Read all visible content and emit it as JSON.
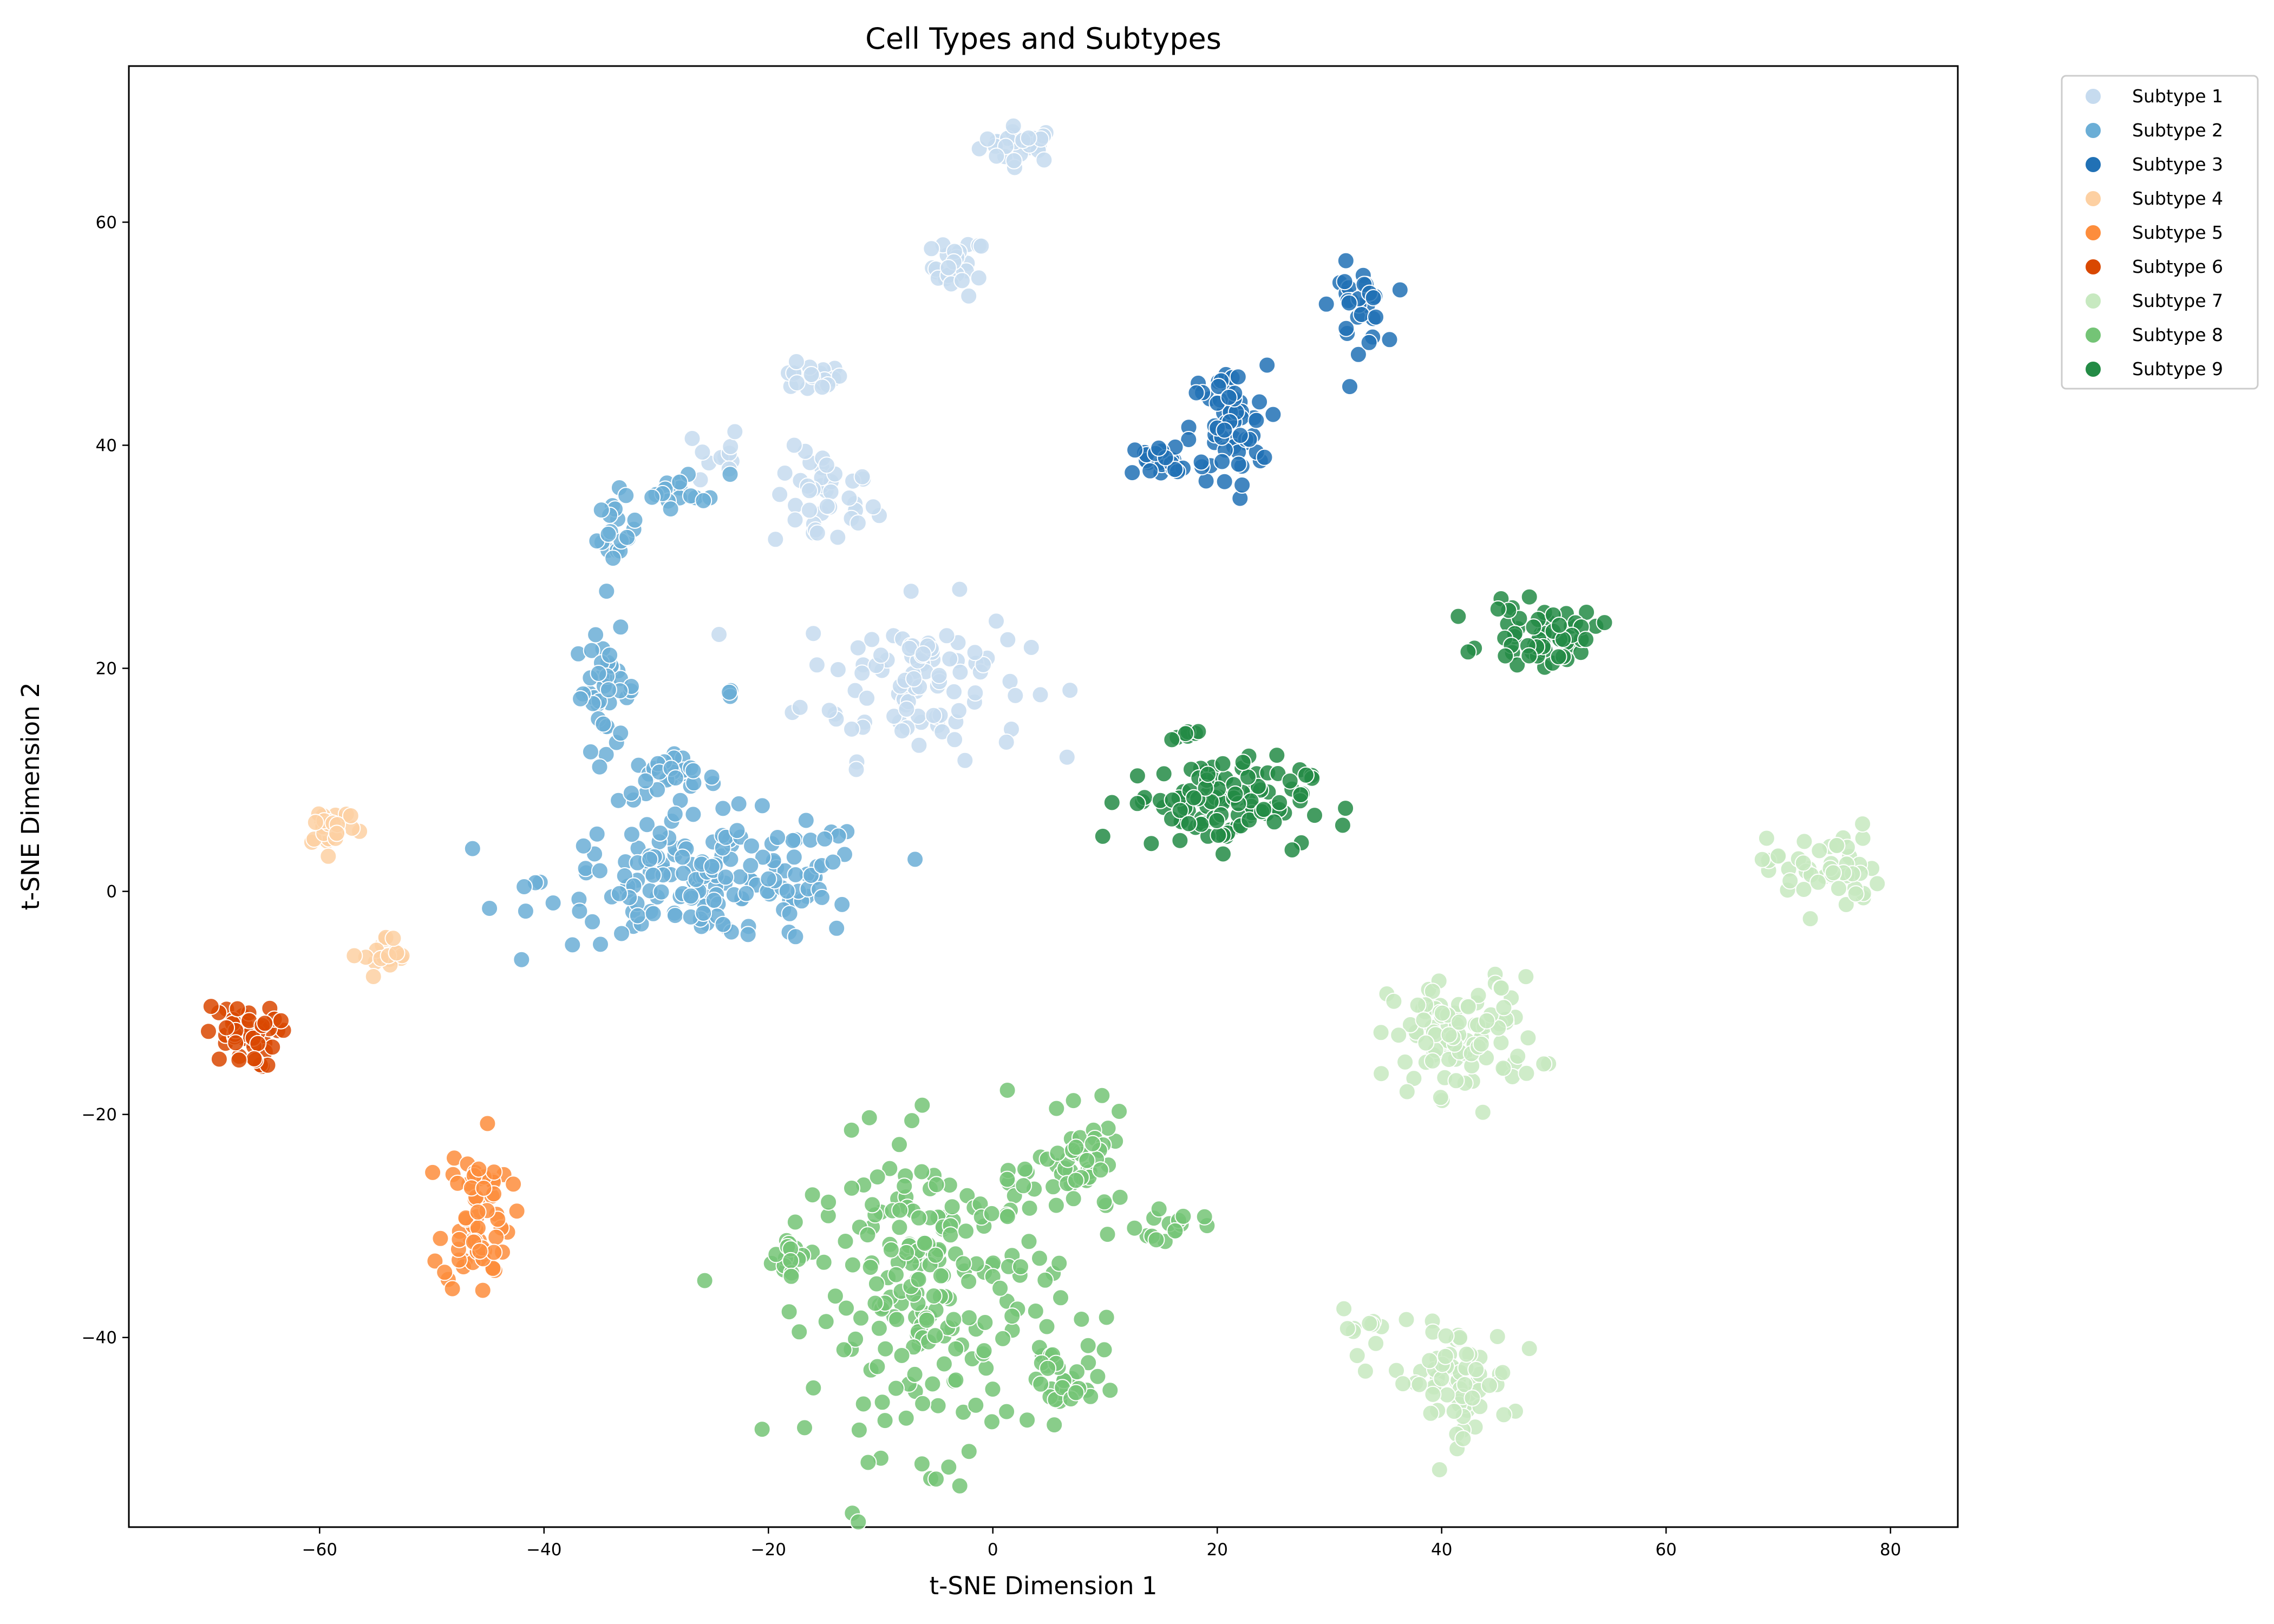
{
  "chart_data": {
    "type": "scatter",
    "title": "Cell Types and Subtypes",
    "xlabel": "t-SNE Dimension 1",
    "ylabel": "t-SNE Dimension 2",
    "xlim": [
      -77,
      86
    ],
    "ylim": [
      -57,
      74
    ],
    "xticks": [
      -60,
      -40,
      -20,
      0,
      20,
      40,
      60,
      80
    ],
    "yticks": [
      -40,
      -20,
      0,
      20,
      40,
      60
    ],
    "grid": false,
    "legend_placement": "outside-top-right",
    "series": [
      {
        "name": "Subtype 1",
        "color": "#c6dbef",
        "clusters": [
          {
            "cx": 2.5,
            "cy": 67,
            "sx": 1.8,
            "sy": 0.8,
            "n": 30
          },
          {
            "cx": -3,
            "cy": 56,
            "sx": 1.2,
            "sy": 1.3,
            "n": 25
          },
          {
            "cx": -16.5,
            "cy": 46,
            "sx": 1.6,
            "sy": 0.6,
            "n": 20
          },
          {
            "cx": -15,
            "cy": 35,
            "sx": 2.3,
            "sy": 2.3,
            "n": 40
          },
          {
            "cx": -24.5,
            "cy": 39,
            "sx": 1.0,
            "sy": 1.5,
            "n": 12
          },
          {
            "cx": -7,
            "cy": 19,
            "sx": 5.0,
            "sy": 3.5,
            "n": 100
          }
        ]
      },
      {
        "name": "Subtype 2",
        "color": "#6baed6",
        "clusters": [
          {
            "cx": -27.5,
            "cy": 36,
            "sx": 2.0,
            "sy": 0.8,
            "n": 18
          },
          {
            "cx": -33.5,
            "cy": 32,
            "sx": 0.9,
            "sy": 1.5,
            "n": 20
          },
          {
            "cx": -34.5,
            "cy": 18,
            "sx": 1.4,
            "sy": 2.6,
            "n": 40
          },
          {
            "cx": -23.5,
            "cy": 18,
            "sx": 0.3,
            "sy": 0.3,
            "n": 3
          },
          {
            "cx": -29,
            "cy": 10,
            "sx": 2.2,
            "sy": 1.0,
            "n": 30
          },
          {
            "cx": -25,
            "cy": 1,
            "sx": 7.5,
            "sy": 2.8,
            "n": 180
          }
        ]
      },
      {
        "name": "Subtype 3",
        "color": "#2171b5",
        "clusters": [
          {
            "cx": 32.5,
            "cy": 52.5,
            "sx": 1.2,
            "sy": 1.8,
            "n": 30
          },
          {
            "cx": 21,
            "cy": 41.5,
            "sx": 1.7,
            "sy": 2.8,
            "n": 60
          },
          {
            "cx": 15.5,
            "cy": 38.5,
            "sx": 1.8,
            "sy": 1.0,
            "n": 30
          }
        ]
      },
      {
        "name": "Subtype 4",
        "color": "#fdd0a2",
        "clusters": [
          {
            "cx": -59,
            "cy": 6,
            "sx": 1.2,
            "sy": 1.0,
            "n": 30
          },
          {
            "cx": -54,
            "cy": -6,
            "sx": 1.0,
            "sy": 1.0,
            "n": 20
          }
        ]
      },
      {
        "name": "Subtype 5",
        "color": "#fd8d3c",
        "clusters": [
          {
            "cx": -46,
            "cy": -29,
            "sx": 1.5,
            "sy": 3.5,
            "n": 70
          }
        ]
      },
      {
        "name": "Subtype 6",
        "color": "#d94801",
        "clusters": [
          {
            "cx": -67,
            "cy": -13,
            "sx": 1.6,
            "sy": 1.4,
            "n": 45
          }
        ]
      },
      {
        "name": "Subtype 7",
        "color": "#c7e9c0",
        "clusters": [
          {
            "cx": 74,
            "cy": 2,
            "sx": 2.5,
            "sy": 2.0,
            "n": 50
          },
          {
            "cx": 42,
            "cy": -13,
            "sx": 3.3,
            "sy": 2.6,
            "n": 100
          },
          {
            "cx": 41,
            "cy": -44,
            "sx": 2.6,
            "sy": 2.5,
            "n": 70
          },
          {
            "cx": 33,
            "cy": -39,
            "sx": 1.0,
            "sy": 1.0,
            "n": 10
          }
        ]
      },
      {
        "name": "Subtype 8",
        "color": "#74c476",
        "clusters": [
          {
            "cx": -5,
            "cy": -36,
            "sx": 5.5,
            "sy": 7.0,
            "n": 220
          },
          {
            "cx": 8,
            "cy": -25,
            "sx": 2.0,
            "sy": 2.3,
            "n": 50
          },
          {
            "cx": 6,
            "cy": -44,
            "sx": 1.5,
            "sy": 1.8,
            "n": 30
          },
          {
            "cx": -18,
            "cy": -33,
            "sx": 1.3,
            "sy": 1.3,
            "n": 20
          },
          {
            "cx": 16,
            "cy": -30,
            "sx": 1.5,
            "sy": 1.0,
            "n": 15
          }
        ]
      },
      {
        "name": "Subtype 9",
        "color": "#238b45",
        "clusters": [
          {
            "cx": 49,
            "cy": 23,
            "sx": 2.5,
            "sy": 1.3,
            "n": 60
          },
          {
            "cx": 20,
            "cy": 8,
            "sx": 4.0,
            "sy": 2.0,
            "n": 110
          },
          {
            "cx": 17.5,
            "cy": 14,
            "sx": 0.8,
            "sy": 0.4,
            "n": 8
          }
        ]
      }
    ]
  }
}
